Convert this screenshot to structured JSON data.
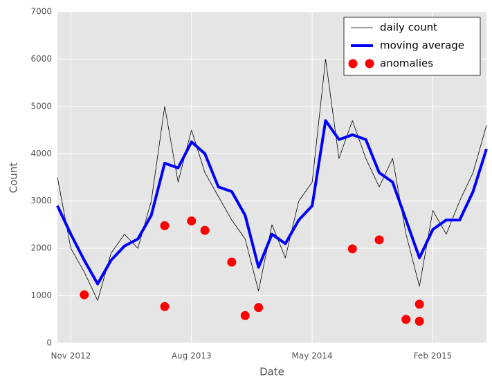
{
  "chart_data": {
    "type": "line",
    "xlabel": "Date",
    "ylabel": "Count",
    "xlim": [
      "2012-10",
      "2015-06"
    ],
    "xticks": [
      {
        "value": "2012-11",
        "label": "Nov 2012"
      },
      {
        "value": "2013-08",
        "label": "Aug 2013"
      },
      {
        "value": "2014-05",
        "label": "May 2014"
      },
      {
        "value": "2015-02",
        "label": "Feb 2015"
      }
    ],
    "ylim": [
      0,
      7000
    ],
    "yticks": [
      0,
      1000,
      2000,
      3000,
      4000,
      5000,
      6000,
      7000
    ],
    "grid": true,
    "legend": "upper right",
    "series": [
      {
        "name": "daily count",
        "color": "#000000",
        "kind": "line",
        "x": [
          "2012-10",
          "2012-11",
          "2012-12",
          "2013-01",
          "2013-02",
          "2013-03",
          "2013-04",
          "2013-05",
          "2013-06",
          "2013-07",
          "2013-08",
          "2013-09",
          "2013-10",
          "2013-11",
          "2013-12",
          "2014-01",
          "2014-02",
          "2014-03",
          "2014-04",
          "2014-05",
          "2014-06",
          "2014-07",
          "2014-08",
          "2014-09",
          "2014-10",
          "2014-11",
          "2014-12",
          "2015-01",
          "2015-02",
          "2015-03",
          "2015-04",
          "2015-05",
          "2015-06"
        ],
        "values": [
          3500,
          2000,
          1500,
          900,
          1900,
          2300,
          2000,
          3000,
          5000,
          3400,
          4500,
          3600,
          3100,
          2600,
          2200,
          1100,
          2500,
          1800,
          3000,
          3400,
          6000,
          3900,
          4700,
          3900,
          3300,
          3900,
          2300,
          1200,
          2800,
          2300,
          3000,
          3600,
          4600
        ]
      },
      {
        "name": "moving average",
        "color": "#0000ff",
        "kind": "line",
        "x": [
          "2012-10",
          "2012-11",
          "2012-12",
          "2013-01",
          "2013-02",
          "2013-03",
          "2013-04",
          "2013-05",
          "2013-06",
          "2013-07",
          "2013-08",
          "2013-09",
          "2013-10",
          "2013-11",
          "2013-12",
          "2014-01",
          "2014-02",
          "2014-03",
          "2014-04",
          "2014-05",
          "2014-06",
          "2014-07",
          "2014-08",
          "2014-09",
          "2014-10",
          "2014-11",
          "2014-12",
          "2015-01",
          "2015-02",
          "2015-03",
          "2015-04",
          "2015-05",
          "2015-06"
        ],
        "values": [
          2900,
          2300,
          1750,
          1250,
          1750,
          2050,
          2200,
          2700,
          3800,
          3700,
          4250,
          4000,
          3300,
          3200,
          2700,
          1600,
          2300,
          2100,
          2600,
          2900,
          4700,
          4300,
          4400,
          4300,
          3600,
          3400,
          2600,
          1800,
          2400,
          2600,
          2600,
          3200,
          4100
        ]
      },
      {
        "name": "anomalies",
        "color": "#ff0000",
        "kind": "scatter",
        "x": [
          "2012-12",
          "2013-06",
          "2013-06",
          "2013-08",
          "2013-09",
          "2013-11",
          "2013-12",
          "2014-01",
          "2014-08",
          "2014-10",
          "2014-12",
          "2015-01",
          "2015-01"
        ],
        "values": [
          1020,
          2480,
          770,
          2580,
          2380,
          1710,
          580,
          750,
          1990,
          2180,
          500,
          460,
          820
        ]
      }
    ]
  }
}
